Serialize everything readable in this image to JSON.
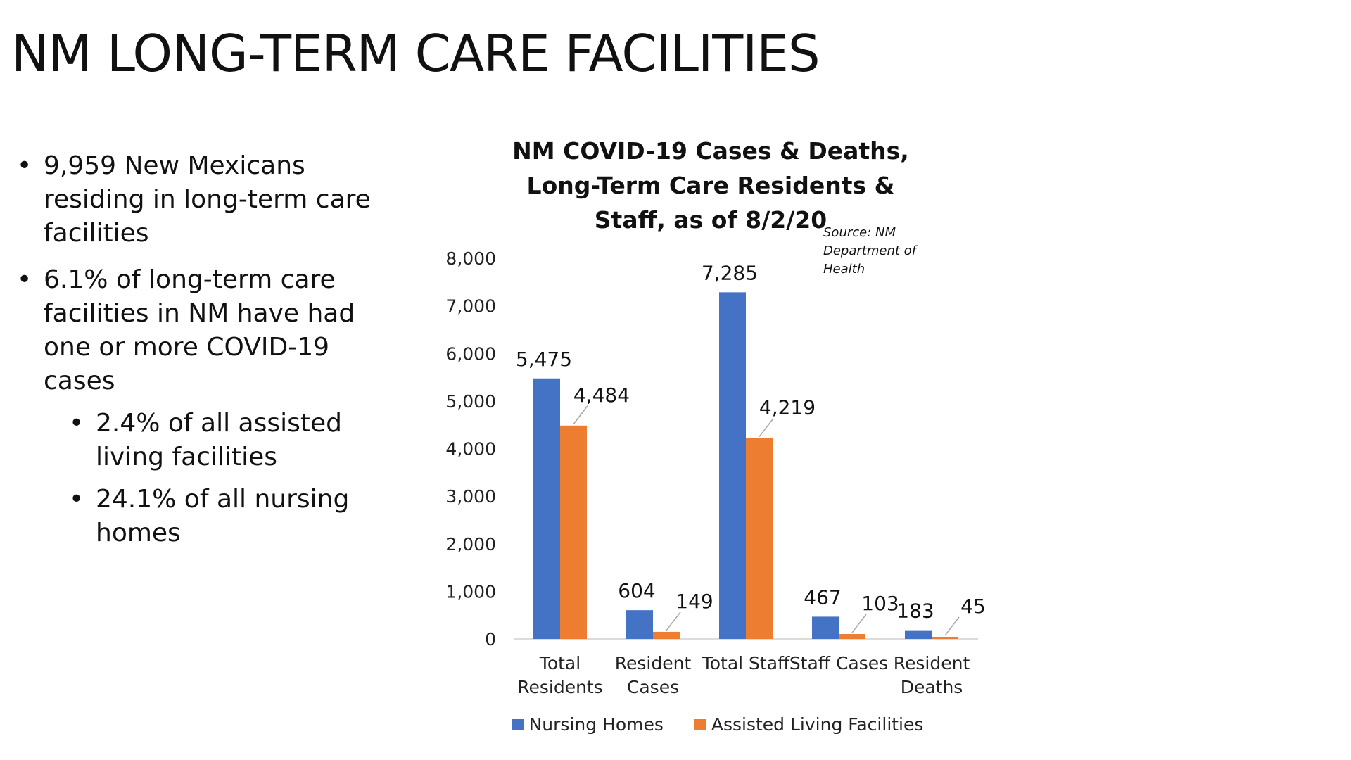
{
  "title": "NM LONG-TERM CARE FACILITIES",
  "bullets": [
    {
      "text": "9,959 New Mexicans residing in long-term care facilities"
    },
    {
      "text": "6.1% of long-term care facilities in NM have had one or more COVID-19 cases",
      "sub": [
        "2.4% of all assisted living facilities",
        "24.1% of all nursing homes"
      ]
    }
  ],
  "chart_data": {
    "type": "bar",
    "title": "NM COVID-19 Cases & Deaths, Long-Term Care Residents & Staff, as of 8/2/20",
    "annotation": "Source: NM Department of Health",
    "categories": [
      "Total Residents",
      "Resident Cases",
      "Total Staff",
      "Staff Cases",
      "Resident Deaths"
    ],
    "series": [
      {
        "name": "Nursing Homes",
        "color": "#4472c4",
        "values": [
          5475,
          604,
          7285,
          467,
          183
        ],
        "value_labels": [
          "5,475",
          "604",
          "7,285",
          "467",
          "183"
        ]
      },
      {
        "name": "Assisted Living Facilities",
        "color": "#ed7d31",
        "values": [
          4484,
          149,
          4219,
          103,
          45
        ],
        "value_labels": [
          "4,484",
          "149",
          "4,219",
          "103",
          "45"
        ]
      }
    ],
    "ylim": [
      0,
      8000
    ],
    "yticks": [
      0,
      {
        "value": 1000,
        "label": "1,000"
      },
      {
        "value": 2000,
        "label": "2,000"
      },
      {
        "value": 3000,
        "label": "3,000"
      },
      {
        "value": 4000,
        "label": "4,000"
      },
      {
        "value": 5000,
        "label": "5,000"
      },
      {
        "value": 6000,
        "label": "6,000"
      },
      {
        "value": 7000,
        "label": "7,000"
      },
      {
        "value": 8000,
        "label": "8,000"
      }
    ],
    "grid": false,
    "legend": "bottom"
  }
}
